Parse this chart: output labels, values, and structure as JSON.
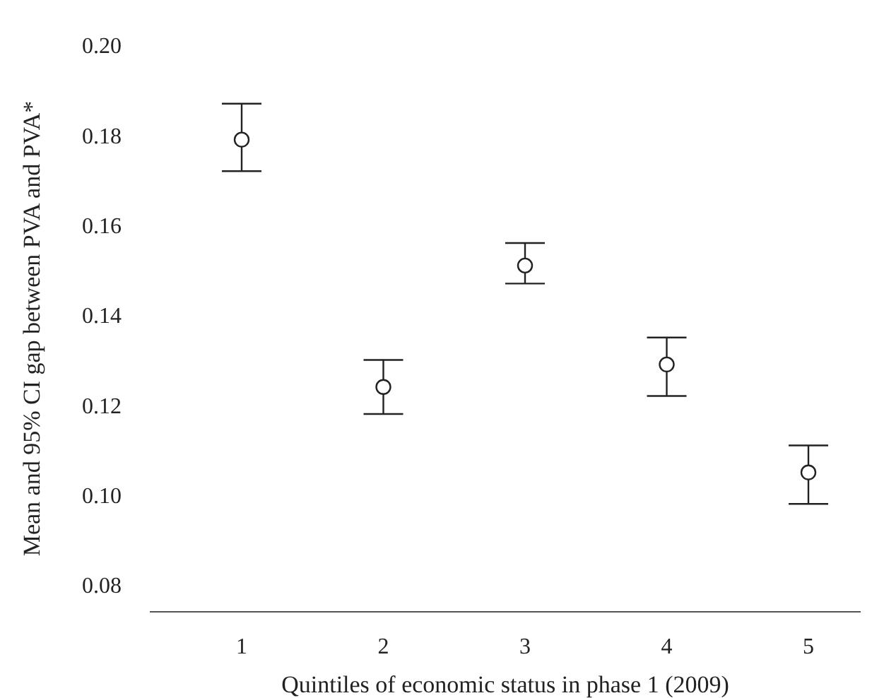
{
  "chart_data": {
    "type": "scatter",
    "xlabel": "Quintiles of economic status in phase 1 (2009)",
    "ylabel": "Mean and 95% CI gap between PVA and PVA*",
    "categories": [
      "1",
      "2",
      "3",
      "4",
      "5"
    ],
    "values": [
      0.179,
      0.124,
      0.151,
      0.129,
      0.105
    ],
    "errors": [
      [
        0.172,
        0.187
      ],
      [
        0.118,
        0.13
      ],
      [
        0.147,
        0.156
      ],
      [
        0.122,
        0.135
      ],
      [
        0.098,
        0.111
      ]
    ],
    "color": "#222222",
    "marker": "circle",
    "grid": false,
    "legend": false,
    "ylim": [
      0.074,
      0.2
    ],
    "yticks": [
      0.08,
      {
        "value": 0.1,
        "label": "0.10"
      },
      0.12,
      0.14,
      0.16,
      0.18,
      {
        "value": 0.2,
        "label": "0.20"
      }
    ]
  }
}
